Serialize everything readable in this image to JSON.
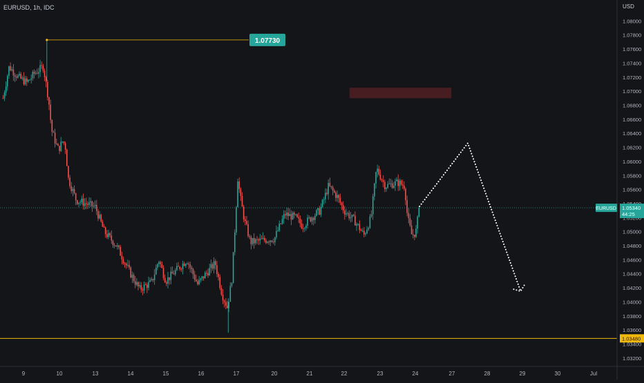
{
  "header": {
    "symbol_line": "EURUSD, 1h, IDC"
  },
  "price_axis": {
    "currency": "USD",
    "ticks": [
      "1.08000",
      "1.07800",
      "1.07600",
      "1.07400",
      "1.07200",
      "1.07000",
      "1.06800",
      "1.06600",
      "1.06400",
      "1.06200",
      "1.06000",
      "1.05800",
      "1.05600",
      "1.05400",
      "1.05200",
      "1.05000",
      "1.04800",
      "1.04600",
      "1.04400",
      "1.04200",
      "1.04000",
      "1.03800",
      "1.03600",
      "1.03400",
      "1.03200"
    ]
  },
  "time_axis": {
    "ticks": [
      "9",
      "10",
      "13",
      "14",
      "15",
      "16",
      "17",
      "20",
      "21",
      "22",
      "23",
      "24",
      "27",
      "28",
      "29",
      "30",
      "Jul"
    ]
  },
  "annotations": {
    "high_label": "1.07730",
    "high_price": 1.0773,
    "support_label": "1.03480",
    "support_price": 1.0348,
    "current_symbol": "EURUSD",
    "current_price_label": "1.05340",
    "current_price": 1.0534,
    "countdown": "44:25",
    "resistance_zone": {
      "from": 1.069,
      "to": 1.0705
    },
    "projection": [
      {
        "day": 24.35,
        "price": 1.0536
      },
      {
        "day": 27.45,
        "price": 1.0626
      },
      {
        "day": 28.95,
        "price": 1.0415
      }
    ]
  },
  "colors": {
    "background": "#141519",
    "up": "#26a69a",
    "down": "#ef5350",
    "level_line": "#f0b90b",
    "current_line": "#26a69a",
    "zone": "#4a1e22"
  },
  "chart_data": {
    "type": "candlestick",
    "title": "EURUSD, 1h, IDC",
    "xlabel": "",
    "ylabel": "USD",
    "x_unit": "trading day (June)",
    "ylim": [
      1.031,
      1.0822
    ],
    "grid": false,
    "path_points": [
      [
        8.43,
        1.069
      ],
      [
        8.6,
        1.0735
      ],
      [
        8.85,
        1.072
      ],
      [
        9.1,
        1.0712
      ],
      [
        9.3,
        1.0725
      ],
      [
        9.55,
        1.0735
      ],
      [
        9.63,
        1.071
      ],
      [
        9.7,
        1.0688
      ],
      [
        9.78,
        1.0645
      ],
      [
        9.95,
        1.0618
      ],
      [
        10.3,
        1.063
      ],
      [
        10.5,
        1.062
      ],
      [
        10.75,
        1.0575
      ],
      [
        11.4,
        1.0545
      ],
      [
        13.0,
        1.0535
      ],
      [
        13.25,
        1.05
      ],
      [
        13.6,
        1.048
      ],
      [
        14.0,
        1.044
      ],
      [
        14.25,
        1.0418
      ],
      [
        14.6,
        1.0428
      ],
      [
        14.8,
        1.046
      ],
      [
        15.0,
        1.043
      ],
      [
        15.3,
        1.0445
      ],
      [
        15.6,
        1.046
      ],
      [
        15.9,
        1.0425
      ],
      [
        16.1,
        1.0438
      ],
      [
        16.4,
        1.0455
      ],
      [
        16.6,
        1.041
      ],
      [
        16.75,
        1.0392
      ],
      [
        16.88,
        1.0435
      ],
      [
        17.05,
        1.0585
      ],
      [
        17.3,
        1.055
      ],
      [
        17.65,
        1.0515
      ],
      [
        17.9,
        1.05
      ],
      [
        18.1,
        1.0485
      ],
      [
        20.0,
        1.049
      ],
      [
        20.3,
        1.0525
      ],
      [
        20.6,
        1.052
      ],
      [
        20.8,
        1.0508
      ],
      [
        21.0,
        1.0518
      ],
      [
        21.3,
        1.053
      ],
      [
        21.55,
        1.0565
      ],
      [
        21.8,
        1.055
      ],
      [
        22.0,
        1.053
      ],
      [
        22.3,
        1.0515
      ],
      [
        22.55,
        1.0495
      ],
      [
        22.75,
        1.052
      ],
      [
        22.9,
        1.059
      ],
      [
        23.15,
        1.0565
      ],
      [
        23.5,
        1.057
      ],
      [
        23.7,
        1.0565
      ],
      [
        23.78,
        1.052
      ],
      [
        23.9,
        1.0495
      ],
      [
        24.05,
        1.05
      ],
      [
        24.2,
        1.0518
      ],
      [
        24.35,
        1.0534
      ]
    ],
    "series": [
      {
        "name": "EURUSD",
        "price_extremes": {
          "high": 1.0773,
          "low": 1.0356
        }
      }
    ]
  }
}
